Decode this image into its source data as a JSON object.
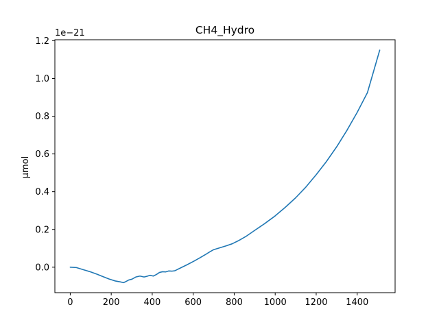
{
  "chart_data": {
    "type": "line",
    "title": "CH4_Hydro",
    "xlabel": "",
    "ylabel": "µmol",
    "y_offset_text": "1e−21",
    "xlim": [
      -75,
      1585
    ],
    "ylim": [
      -0.135,
      1.205
    ],
    "x_ticks": [
      0,
      200,
      400,
      600,
      800,
      1000,
      1200,
      1400
    ],
    "x_tick_labels": [
      "0",
      "200",
      "400",
      "600",
      "800",
      "1000",
      "1200",
      "1400"
    ],
    "y_ticks": [
      0.0,
      0.2,
      0.4,
      0.6,
      0.8,
      1.0,
      1.2
    ],
    "y_tick_labels": [
      "0.0",
      "0.2",
      "0.4",
      "0.6",
      "0.8",
      "1.0",
      "1.2"
    ],
    "grid": false,
    "series": [
      {
        "name": "CH4_Hydro",
        "color": "#1f77b4",
        "x": [
          0,
          30,
          60,
          100,
          130,
          160,
          190,
          220,
          245,
          260,
          270,
          285,
          300,
          320,
          340,
          360,
          375,
          390,
          405,
          420,
          435,
          450,
          465,
          480,
          495,
          510,
          540,
          570,
          600,
          630,
          660,
          680,
          700,
          730,
          760,
          790,
          820,
          860,
          900,
          950,
          1000,
          1050,
          1100,
          1150,
          1200,
          1250,
          1300,
          1350,
          1400,
          1450,
          1510
        ],
        "values": [
          0.0,
          -0.002,
          -0.012,
          -0.025,
          -0.037,
          -0.05,
          -0.063,
          -0.073,
          -0.078,
          -0.082,
          -0.077,
          -0.068,
          -0.064,
          -0.052,
          -0.047,
          -0.052,
          -0.048,
          -0.043,
          -0.047,
          -0.039,
          -0.028,
          -0.024,
          -0.025,
          -0.02,
          -0.021,
          -0.019,
          -0.003,
          0.013,
          0.03,
          0.048,
          0.067,
          0.081,
          0.093,
          0.103,
          0.113,
          0.124,
          0.14,
          0.165,
          0.195,
          0.232,
          0.272,
          0.318,
          0.368,
          0.425,
          0.49,
          0.56,
          0.638,
          0.725,
          0.82,
          0.925,
          1.15
        ]
      }
    ]
  }
}
